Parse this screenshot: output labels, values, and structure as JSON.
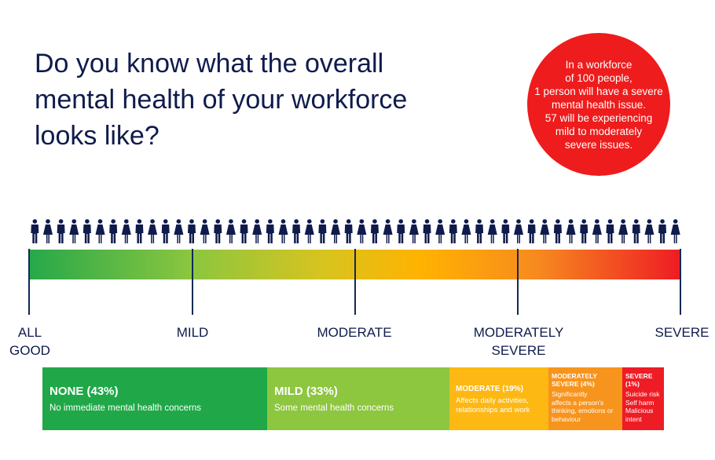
{
  "headline": {
    "lines": [
      "Do you know what the overall",
      "mental health of your workforce",
      "looks like?"
    ]
  },
  "stat_circle": {
    "lines": [
      "In a workforce",
      "of 100 people,",
      "1 person will have a severe",
      "mental health issue.",
      "57 will be experiencing",
      "mild to moderately",
      "severe issues."
    ],
    "color": "#ee1c1c"
  },
  "people_row": {
    "count": 50,
    "icon": "person-icon",
    "color": "#0f1b4c"
  },
  "scale": {
    "labels": [
      {
        "lines": [
          "ALL",
          "GOOD"
        ]
      },
      {
        "lines": [
          "MILD"
        ]
      },
      {
        "lines": [
          "MODERATE"
        ]
      },
      {
        "lines": [
          "MODERATELY",
          "SEVERE"
        ]
      },
      {
        "lines": [
          "SEVERE"
        ]
      }
    ],
    "gradient_colors": [
      "#26a84a",
      "#8cc63f",
      "#d7c41f",
      "#ffb300",
      "#f78a1f",
      "#ee1c24"
    ]
  },
  "categories": [
    {
      "title": "NONE (43%)",
      "desc": [
        "No immediate mental health concerns"
      ],
      "color": "#20a848"
    },
    {
      "title": "MILD (33%)",
      "desc": [
        "Some mental health concerns"
      ],
      "color": "#8dc63f"
    },
    {
      "title": "MODERATE (19%)",
      "desc": [
        "Affects daily activities,",
        "relationships and work"
      ],
      "color": "#fdb813"
    },
    {
      "title_lines": [
        "MODERATELY",
        "SEVERE (4%)"
      ],
      "desc": [
        "Significantly",
        "affects a person's",
        "thinking, emotions or",
        "behaviour"
      ],
      "color": "#f7941d"
    },
    {
      "title_lines": [
        "SEVERE",
        "(1%)"
      ],
      "desc": [
        "Suicide risk",
        "Self harm",
        "Malicious",
        "intent"
      ],
      "color": "#ee1c24"
    }
  ]
}
